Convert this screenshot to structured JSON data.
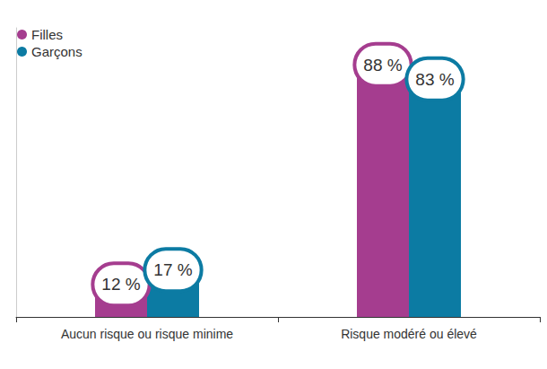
{
  "chart_data": {
    "type": "bar",
    "categories": [
      "Aucun risque ou risque minime",
      "Risque modéré ou élevé"
    ],
    "series": [
      {
        "name": "Filles",
        "color": "#a53d8f",
        "values": [
          12,
          88
        ],
        "value_labels": [
          "12 %",
          "88 %"
        ]
      },
      {
        "name": "Garçons",
        "color": "#0c7ba3",
        "values": [
          17,
          83
        ],
        "value_labels": [
          "17 %",
          "83 %"
        ]
      }
    ],
    "ylim": [
      0,
      100
    ],
    "grid": false,
    "legend": "top-left",
    "data_labels": true,
    "tick_labels": "x"
  }
}
